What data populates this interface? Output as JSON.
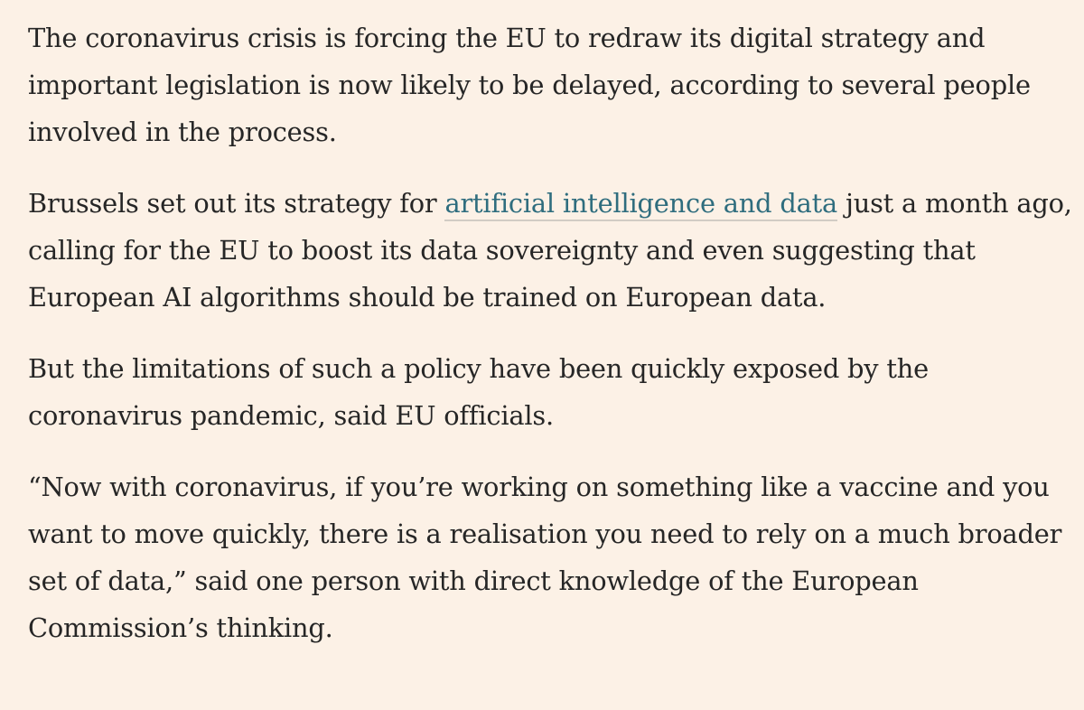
{
  "article": {
    "paragraphs": [
      {
        "lines": [
          "The coronavirus crisis is forcing the EU to redraw its digital strategy and",
          "important legislation is now likely to be delayed, according to several people",
          "involved in the process."
        ]
      },
      {
        "line1_before_link": "Brussels set out its strategy for ",
        "link_text": "artificial intelligence and data",
        "line1_after_link": " just a month ago,",
        "lines": [
          "calling for the EU to boost its data sovereignty and even suggesting that",
          "European AI algorithms should be trained on European data."
        ]
      },
      {
        "lines": [
          "But the limitations of such a policy have been quickly exposed by the",
          "coronavirus pandemic, said EU officials."
        ]
      },
      {
        "lines": [
          "“Now with coronavirus, if you’re working on something like a vaccine and you",
          "want to move quickly, there is a realisation you need to rely on a much broader",
          "set of data,” said one person with direct knowledge of the European",
          "Commission’s thinking."
        ]
      }
    ]
  },
  "colors": {
    "background": "#fcf1e6",
    "text": "#262626",
    "link": "#2f6d7e",
    "link_underline": "#d1ccc4"
  }
}
